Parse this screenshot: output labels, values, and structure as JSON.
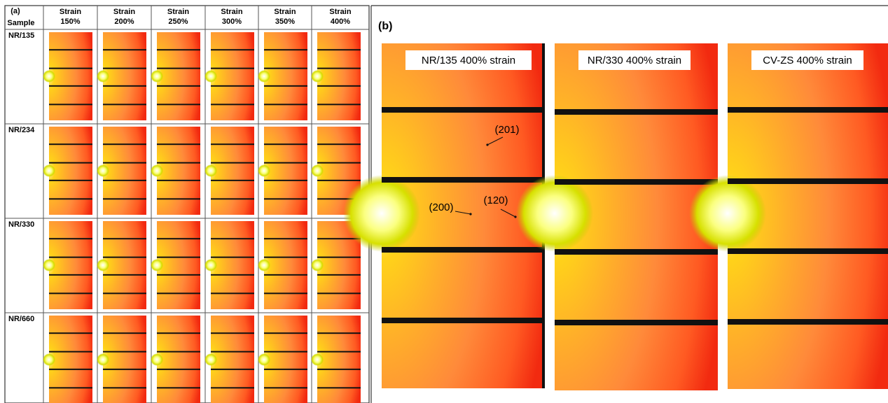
{
  "panel_a": {
    "label": "(a)",
    "corner_header": "Sample",
    "columns": [
      [
        "Strain",
        "150%"
      ],
      [
        "Strain",
        "200%"
      ],
      [
        "Strain",
        "250%"
      ],
      [
        "Strain",
        "300%"
      ],
      [
        "Strain",
        "350%"
      ],
      [
        "Strain",
        "400%"
      ]
    ],
    "rows": [
      "NR/135",
      "NR/234",
      "NR/330",
      "NR/660"
    ]
  },
  "panel_b": {
    "label": "(b)",
    "images": [
      "NR/135 400% strain",
      "NR/330 400% strain",
      "CV-ZS 400% strain"
    ],
    "annotations": [
      "(201)",
      "(200)",
      "(120)"
    ]
  }
}
